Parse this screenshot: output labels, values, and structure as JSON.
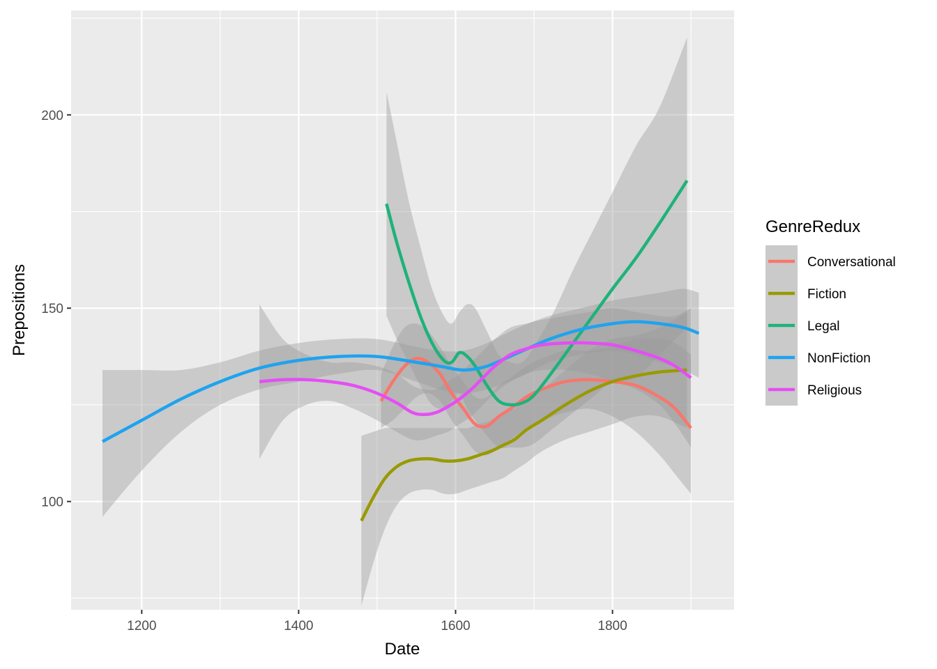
{
  "chart_data": {
    "type": "line",
    "xlabel": "Date",
    "ylabel": "Prepositions",
    "xlim": [
      1110,
      1955
    ],
    "ylim": [
      72,
      227
    ],
    "x_ticks": [
      1200,
      1400,
      1600,
      1800
    ],
    "y_ticks": [
      100,
      150,
      200
    ],
    "x_tick_labels": [
      "1200",
      "1400",
      "1600",
      "1800"
    ],
    "y_tick_labels": [
      "100",
      "150",
      "200"
    ],
    "x_minor_ticks": [
      1300,
      1500,
      1700,
      1900
    ],
    "y_minor_ticks": [
      75,
      125,
      175,
      225
    ],
    "legend": {
      "title": "GenreRedux",
      "position": "right"
    },
    "band_color": "#999999",
    "panel_color": "#ebebeb",
    "series": [
      {
        "name": "Conversational",
        "color": "#f8766d",
        "x": [
          1505,
          1520,
          1535,
          1550,
          1565,
          1580,
          1595,
          1610,
          1625,
          1640,
          1655,
          1670,
          1690,
          1710,
          1740,
          1770,
          1800,
          1830,
          1860,
          1880,
          1900
        ],
        "y": [
          126,
          131,
          135,
          137,
          136,
          133,
          128,
          124,
          120,
          119.5,
          122,
          124,
          127,
          129,
          131,
          131.5,
          131,
          130,
          127,
          124,
          119
        ],
        "lower": [
          119,
          121,
          124,
          127,
          128,
          126,
          121,
          117,
          113,
          112,
          114,
          116,
          119,
          121,
          123,
          124,
          122,
          118,
          112,
          107,
          102
        ],
        "upper": [
          133,
          140,
          145,
          146,
          144,
          140,
          135,
          131,
          127,
          127,
          130,
          132,
          135,
          137,
          139,
          139,
          140,
          142,
          142,
          141,
          138
        ]
      },
      {
        "name": "Fiction",
        "color": "#999900",
        "x": [
          1480,
          1495,
          1510,
          1525,
          1540,
          1555,
          1570,
          1585,
          1600,
          1615,
          1630,
          1645,
          1660,
          1675,
          1690,
          1710,
          1740,
          1770,
          1800,
          1830,
          1860,
          1895
        ],
        "y": [
          95,
          101,
          106,
          109,
          110.5,
          111,
          111,
          110.5,
          110.5,
          111,
          112,
          113,
          114.5,
          116,
          118.5,
          121,
          125,
          128.5,
          131,
          132.5,
          133.5,
          134
        ],
        "lower": [
          73,
          84,
          93,
          99,
          102,
          103,
          103,
          102,
          102,
          103,
          104,
          105,
          106,
          108,
          110,
          113,
          116,
          118,
          120,
          122,
          122,
          119
        ],
        "upper": [
          117,
          118,
          119,
          119,
          119,
          119,
          119,
          119,
          119,
          119,
          120,
          121,
          123,
          124,
          127,
          129,
          134,
          139,
          142,
          143,
          145,
          149
        ]
      },
      {
        "name": "Legal",
        "color": "#1fb27a",
        "x": [
          1512,
          1525,
          1540,
          1555,
          1570,
          1585,
          1595,
          1605,
          1615,
          1625,
          1640,
          1655,
          1670,
          1685,
          1700,
          1725,
          1750,
          1775,
          1800,
          1830,
          1860,
          1895
        ],
        "y": [
          177,
          167,
          157,
          148,
          141,
          136.5,
          136,
          138.5,
          137.5,
          135,
          130,
          126,
          125,
          125.5,
          127.5,
          134,
          141,
          148,
          155,
          163,
          172,
          183
        ],
        "lower": [
          148,
          142,
          136,
          130,
          125,
          124,
          126,
          128,
          124,
          121,
          117,
          114,
          114,
          114,
          115,
          119,
          123,
          127,
          131,
          132,
          138,
          145
        ],
        "upper": [
          206,
          193,
          178,
          166,
          155,
          148,
          146,
          149,
          151,
          150,
          144,
          138,
          136,
          136,
          140,
          149,
          160,
          170,
          180,
          192,
          202,
          220
        ]
      },
      {
        "name": "NonFiction",
        "color": "#1ea3f0",
        "x": [
          1150,
          1200,
          1250,
          1300,
          1350,
          1400,
          1450,
          1500,
          1550,
          1580,
          1610,
          1640,
          1680,
          1720,
          1760,
          1800,
          1830,
          1860,
          1890,
          1910
        ],
        "y": [
          115.5,
          121,
          126.5,
          131,
          134.5,
          136.5,
          137.5,
          137.5,
          136,
          135,
          134,
          135,
          138.5,
          142,
          144.5,
          146,
          146.5,
          146,
          145,
          143.5
        ],
        "lower": [
          96,
          108,
          118,
          125,
          129,
          131,
          133,
          134,
          131,
          129,
          128,
          129,
          132,
          136,
          138,
          139,
          138,
          136,
          134,
          132
        ],
        "upper": [
          134,
          134,
          134,
          136,
          139,
          141,
          142,
          142,
          140,
          139,
          139,
          141,
          145,
          148,
          150,
          152,
          153,
          154,
          155,
          154
        ]
      },
      {
        "name": "Religious",
        "color": "#e44ef4",
        "x": [
          1350,
          1380,
          1410,
          1440,
          1470,
          1500,
          1525,
          1545,
          1560,
          1575,
          1590,
          1605,
          1620,
          1635,
          1650,
          1670,
          1690,
          1710,
          1740,
          1770,
          1800,
          1830,
          1860,
          1880,
          1900
        ],
        "y": [
          131,
          131.5,
          131.5,
          131,
          130,
          128,
          125.5,
          123,
          122.5,
          123,
          124.5,
          126.5,
          129,
          132,
          135,
          138,
          139.5,
          140.5,
          141,
          141,
          140.5,
          139,
          137,
          135,
          132
        ],
        "lower": [
          111,
          121,
          125,
          126,
          124,
          121,
          118,
          116,
          116,
          117,
          118,
          120,
          122,
          125,
          128,
          131,
          133,
          134,
          134,
          133,
          131,
          129,
          125,
          120,
          114
        ],
        "upper": [
          151,
          142,
          138,
          136,
          136,
          135,
          133,
          130,
          129,
          129,
          131,
          133,
          136,
          139,
          142,
          145,
          146,
          147,
          148,
          149,
          150,
          149,
          148,
          148,
          150
        ]
      }
    ]
  }
}
